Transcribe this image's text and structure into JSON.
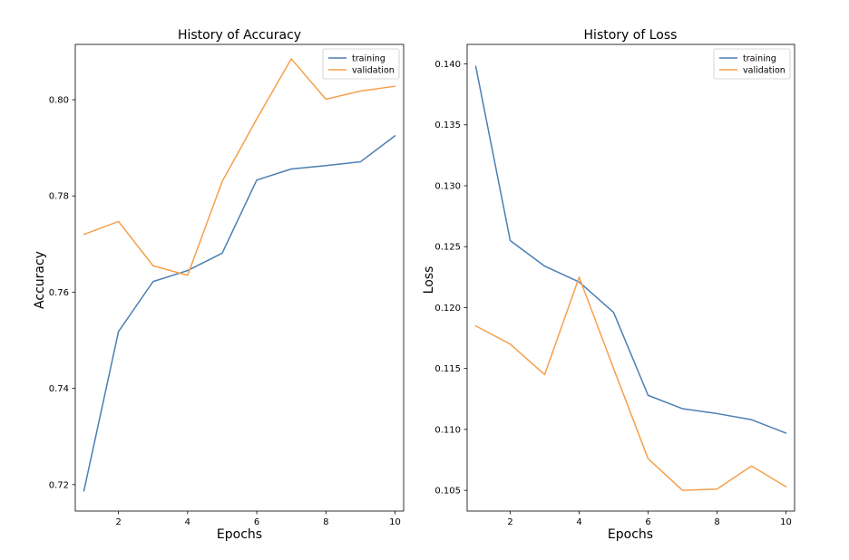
{
  "chart_data": [
    {
      "type": "line",
      "title": "History of Accuracy",
      "xlabel": "Epochs",
      "ylabel": "Accuracy",
      "x": [
        1,
        2,
        3,
        4,
        5,
        6,
        7,
        8,
        9,
        10
      ],
      "xlim": [
        0.75,
        10.25
      ],
      "ylim": [
        0.7145,
        0.8115
      ],
      "xticks": [
        2,
        4,
        6,
        8,
        10
      ],
      "xtick_labels": [
        "2",
        "4",
        "6",
        "8",
        "10"
      ],
      "yticks": [
        0.72,
        0.74,
        0.76,
        0.78,
        0.8
      ],
      "ytick_labels": [
        "0.72",
        "0.74",
        "0.76",
        "0.78",
        "0.80"
      ],
      "grid": false,
      "legend_position": "top-right",
      "series": [
        {
          "name": "training",
          "color": "#4c7fb3",
          "values": [
            0.7187,
            0.7518,
            0.7622,
            0.7645,
            0.7681,
            0.7833,
            0.7856,
            0.7863,
            0.7871,
            0.7925
          ]
        },
        {
          "name": "validation",
          "color": "#f5a04b",
          "values": [
            0.772,
            0.7747,
            0.7655,
            0.7635,
            0.783,
            0.796,
            0.8085,
            0.8001,
            0.8018,
            0.8028
          ]
        }
      ]
    },
    {
      "type": "line",
      "title": "History of Loss",
      "xlabel": "Epochs",
      "ylabel": "Loss",
      "x": [
        1,
        2,
        3,
        4,
        5,
        6,
        7,
        8,
        9,
        10
      ],
      "xlim": [
        0.75,
        10.25
      ],
      "ylim": [
        0.1033,
        0.1416
      ],
      "xticks": [
        2,
        4,
        6,
        8,
        10
      ],
      "xtick_labels": [
        "2",
        "4",
        "6",
        "8",
        "10"
      ],
      "yticks": [
        0.105,
        0.11,
        0.115,
        0.12,
        0.125,
        0.13,
        0.135,
        0.14
      ],
      "ytick_labels": [
        "0.105",
        "0.110",
        "0.115",
        "0.120",
        "0.125",
        "0.130",
        "0.135",
        "0.140"
      ],
      "grid": false,
      "legend_position": "top-right",
      "series": [
        {
          "name": "training",
          "color": "#4c7fb3",
          "values": [
            0.1398,
            0.1255,
            0.1234,
            0.1221,
            0.1196,
            0.1128,
            0.1117,
            0.1113,
            0.1108,
            0.1097
          ]
        },
        {
          "name": "validation",
          "color": "#f5a04b",
          "values": [
            0.1185,
            0.117,
            0.1145,
            0.1225,
            0.115,
            0.1076,
            0.105,
            0.1051,
            0.107,
            0.1053
          ]
        }
      ]
    }
  ]
}
